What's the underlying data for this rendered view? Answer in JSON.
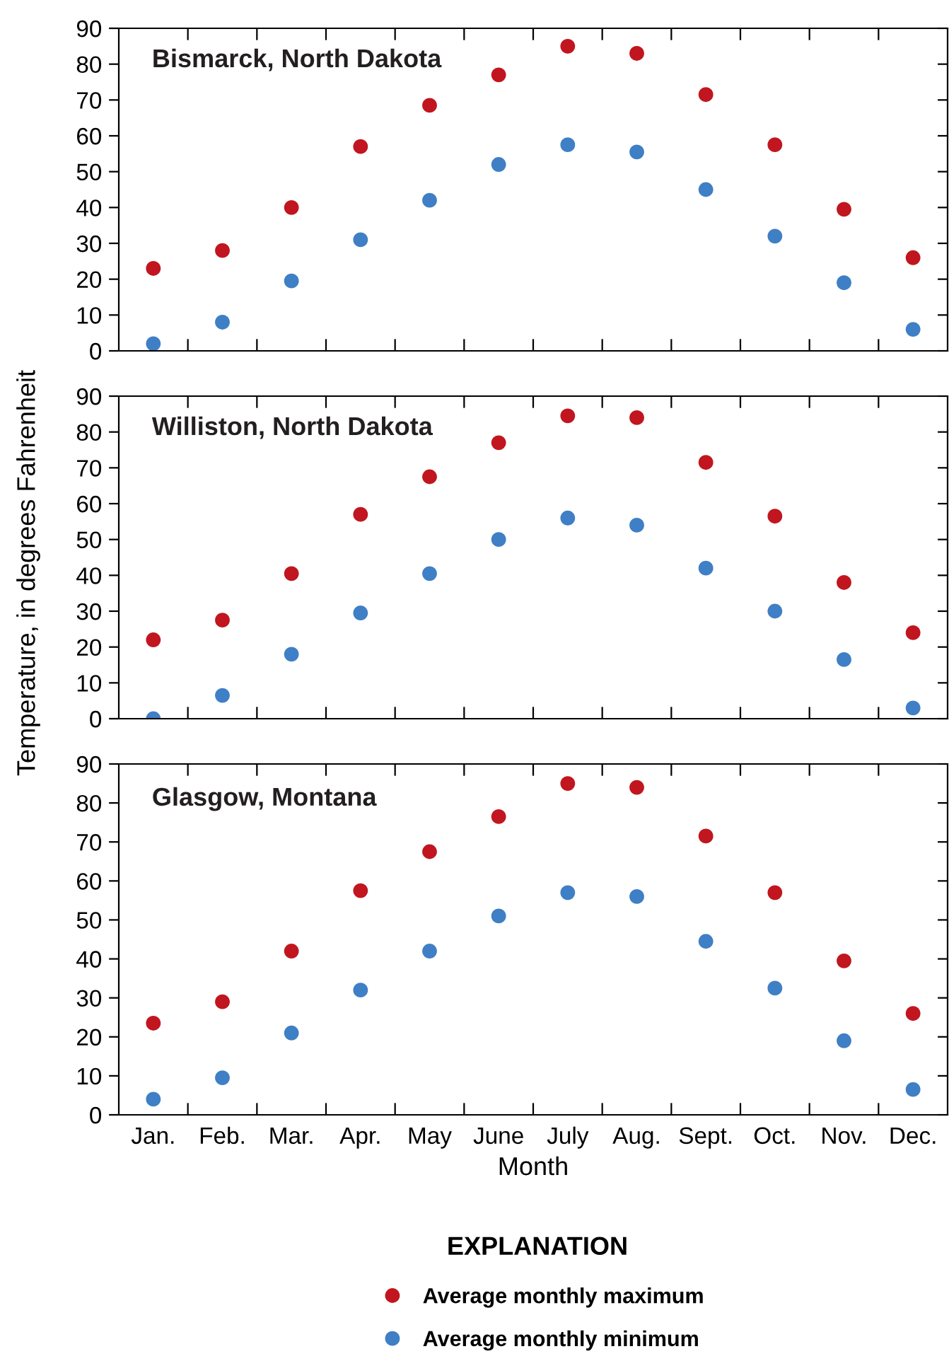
{
  "chart_data": [
    {
      "type": "scatter",
      "title": "Bismarck, North Dakota",
      "categories": [
        null,
        null,
        null,
        null,
        null,
        null,
        null,
        null,
        null,
        null,
        null,
        null
      ],
      "ylim": [
        0,
        90
      ],
      "yticks": [
        0,
        10,
        20,
        30,
        40,
        50,
        60,
        70,
        80,
        90
      ],
      "tick_labels": "y",
      "marker": "circle",
      "grid": false,
      "legend": false,
      "series": [
        {
          "color": "#c1161f",
          "values": [
            23,
            28,
            40,
            57,
            68.5,
            77,
            85,
            83,
            71.5,
            57.5,
            39.5,
            26
          ]
        },
        {
          "color": "#3f7fc5",
          "values": [
            2,
            8,
            19.5,
            31,
            42,
            52,
            57.5,
            55.5,
            45,
            32,
            19,
            6
          ]
        }
      ]
    },
    {
      "type": "scatter",
      "title": "Williston, North Dakota",
      "ylabel": "Temperature, in degrees Fahrenheit",
      "categories": [
        null,
        null,
        null,
        null,
        null,
        null,
        null,
        null,
        null,
        null,
        null,
        null
      ],
      "ylim": [
        0,
        90
      ],
      "yticks": [
        0,
        10,
        20,
        30,
        40,
        50,
        60,
        70,
        80,
        90
      ],
      "tick_labels": "y",
      "marker": "circle",
      "grid": false,
      "legend": false,
      "series": [
        {
          "color": "#c1161f",
          "values": [
            22,
            27.5,
            40.5,
            57,
            67.5,
            77,
            84.5,
            84,
            71.5,
            56.5,
            38,
            24
          ]
        },
        {
          "color": "#3f7fc5",
          "values": [
            0,
            6.5,
            18,
            29.5,
            40.5,
            50,
            56,
            54,
            42,
            30,
            16.5,
            3
          ]
        }
      ]
    },
    {
      "type": "scatter",
      "title": "Glasgow, Montana",
      "xlabel": "Month",
      "legend_title": "EXPLANATION",
      "categories": [
        "Jan.",
        "Feb.",
        "Mar.",
        "Apr.",
        "May",
        "June",
        "July",
        "Aug.",
        "Sept.",
        "Oct.",
        "Nov.",
        "Dec."
      ],
      "ylim": [
        0,
        90
      ],
      "yticks": [
        0,
        10,
        20,
        30,
        40,
        50,
        60,
        70,
        80,
        90
      ],
      "marker": "circle",
      "grid": false,
      "legend": "bottom",
      "series": [
        {
          "name": "Average monthly maximum",
          "color": "#c1161f",
          "values": [
            23.5,
            29,
            42,
            57.5,
            67.5,
            76.5,
            85,
            84,
            71.5,
            57,
            39.5,
            26
          ]
        },
        {
          "name": "Average monthly minimum",
          "color": "#3f7fc5",
          "values": [
            4,
            9.5,
            21,
            32,
            42,
            51,
            57,
            56,
            44.5,
            32.5,
            19,
            6.5
          ]
        }
      ]
    }
  ]
}
